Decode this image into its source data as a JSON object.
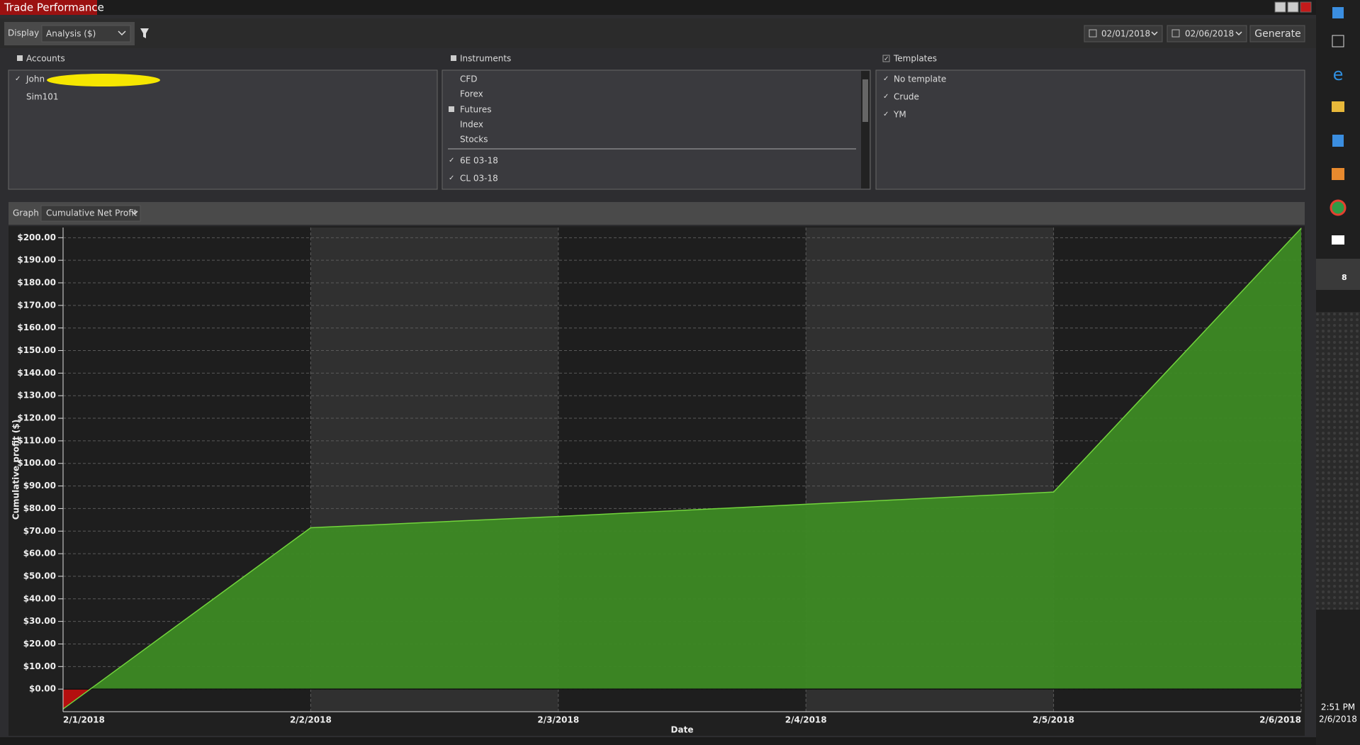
{
  "window": {
    "title": "Trade Performance"
  },
  "toolbar": {
    "display_label": "Display",
    "display_value": "Analysis ($)",
    "start_date": "02/01/2018",
    "end_date": "02/06/2018",
    "generate": "Generate"
  },
  "accounts": {
    "title": "Accounts",
    "items": [
      "John",
      "Sim101"
    ]
  },
  "instruments": {
    "title": "Instruments",
    "items": [
      "CFD",
      "Forex",
      "Futures",
      "Index",
      "Stocks"
    ],
    "contracts": [
      "6E 03-18",
      "CL 03-18"
    ]
  },
  "templates": {
    "title": "Templates",
    "items": [
      "No template",
      "Crude",
      "YM"
    ]
  },
  "graph": {
    "label": "Graph",
    "value": "Cumulative Net Profit"
  },
  "chart_data": {
    "type": "area",
    "x_label": "Date",
    "y_label": "Cumulative profit ($)",
    "categories": [
      "2/1/2018",
      "2/2/2018",
      "2/3/2018",
      "2/4/2018",
      "2/5/2018",
      "2/6/2018"
    ],
    "values": [
      -8.8,
      71.5,
      76.5,
      81.9,
      87.3,
      204.2
    ],
    "color": "#3d8a24",
    "line_color": "#72d43c",
    "negative_color": "#b40f0f",
    "ylim": [
      -10,
      204.5
    ],
    "yticks": [
      {
        "value": 0,
        "label": "$0.00"
      },
      {
        "value": 10,
        "label": "$10.00"
      },
      {
        "value": 20,
        "label": "$20.00"
      },
      {
        "value": 30,
        "label": "$30.00"
      },
      {
        "value": 40,
        "label": "$40.00"
      },
      {
        "value": 50,
        "label": "$50.00"
      },
      {
        "value": 60,
        "label": "$60.00"
      },
      {
        "value": 70,
        "label": "$70.00"
      },
      {
        "value": 80,
        "label": "$80.00"
      },
      {
        "value": 90,
        "label": "$90.00"
      },
      {
        "value": 100,
        "label": "$100.00"
      },
      {
        "value": 110,
        "label": "$110.00"
      },
      {
        "value": 120,
        "label": "$120.00"
      },
      {
        "value": 130,
        "label": "$130.00"
      },
      {
        "value": 140,
        "label": "$140.00"
      },
      {
        "value": 150,
        "label": "$150.00"
      },
      {
        "value": 160,
        "label": "$160.00"
      },
      {
        "value": 170,
        "label": "$170.00"
      },
      {
        "value": 180,
        "label": "$180.00"
      },
      {
        "value": 190,
        "label": "$190.00"
      },
      {
        "value": 200,
        "label": "$200.00"
      }
    ],
    "grid": true
  },
  "taskbar": {
    "badge": "8",
    "time": "2:51 PM",
    "date": "2/6/2018"
  }
}
